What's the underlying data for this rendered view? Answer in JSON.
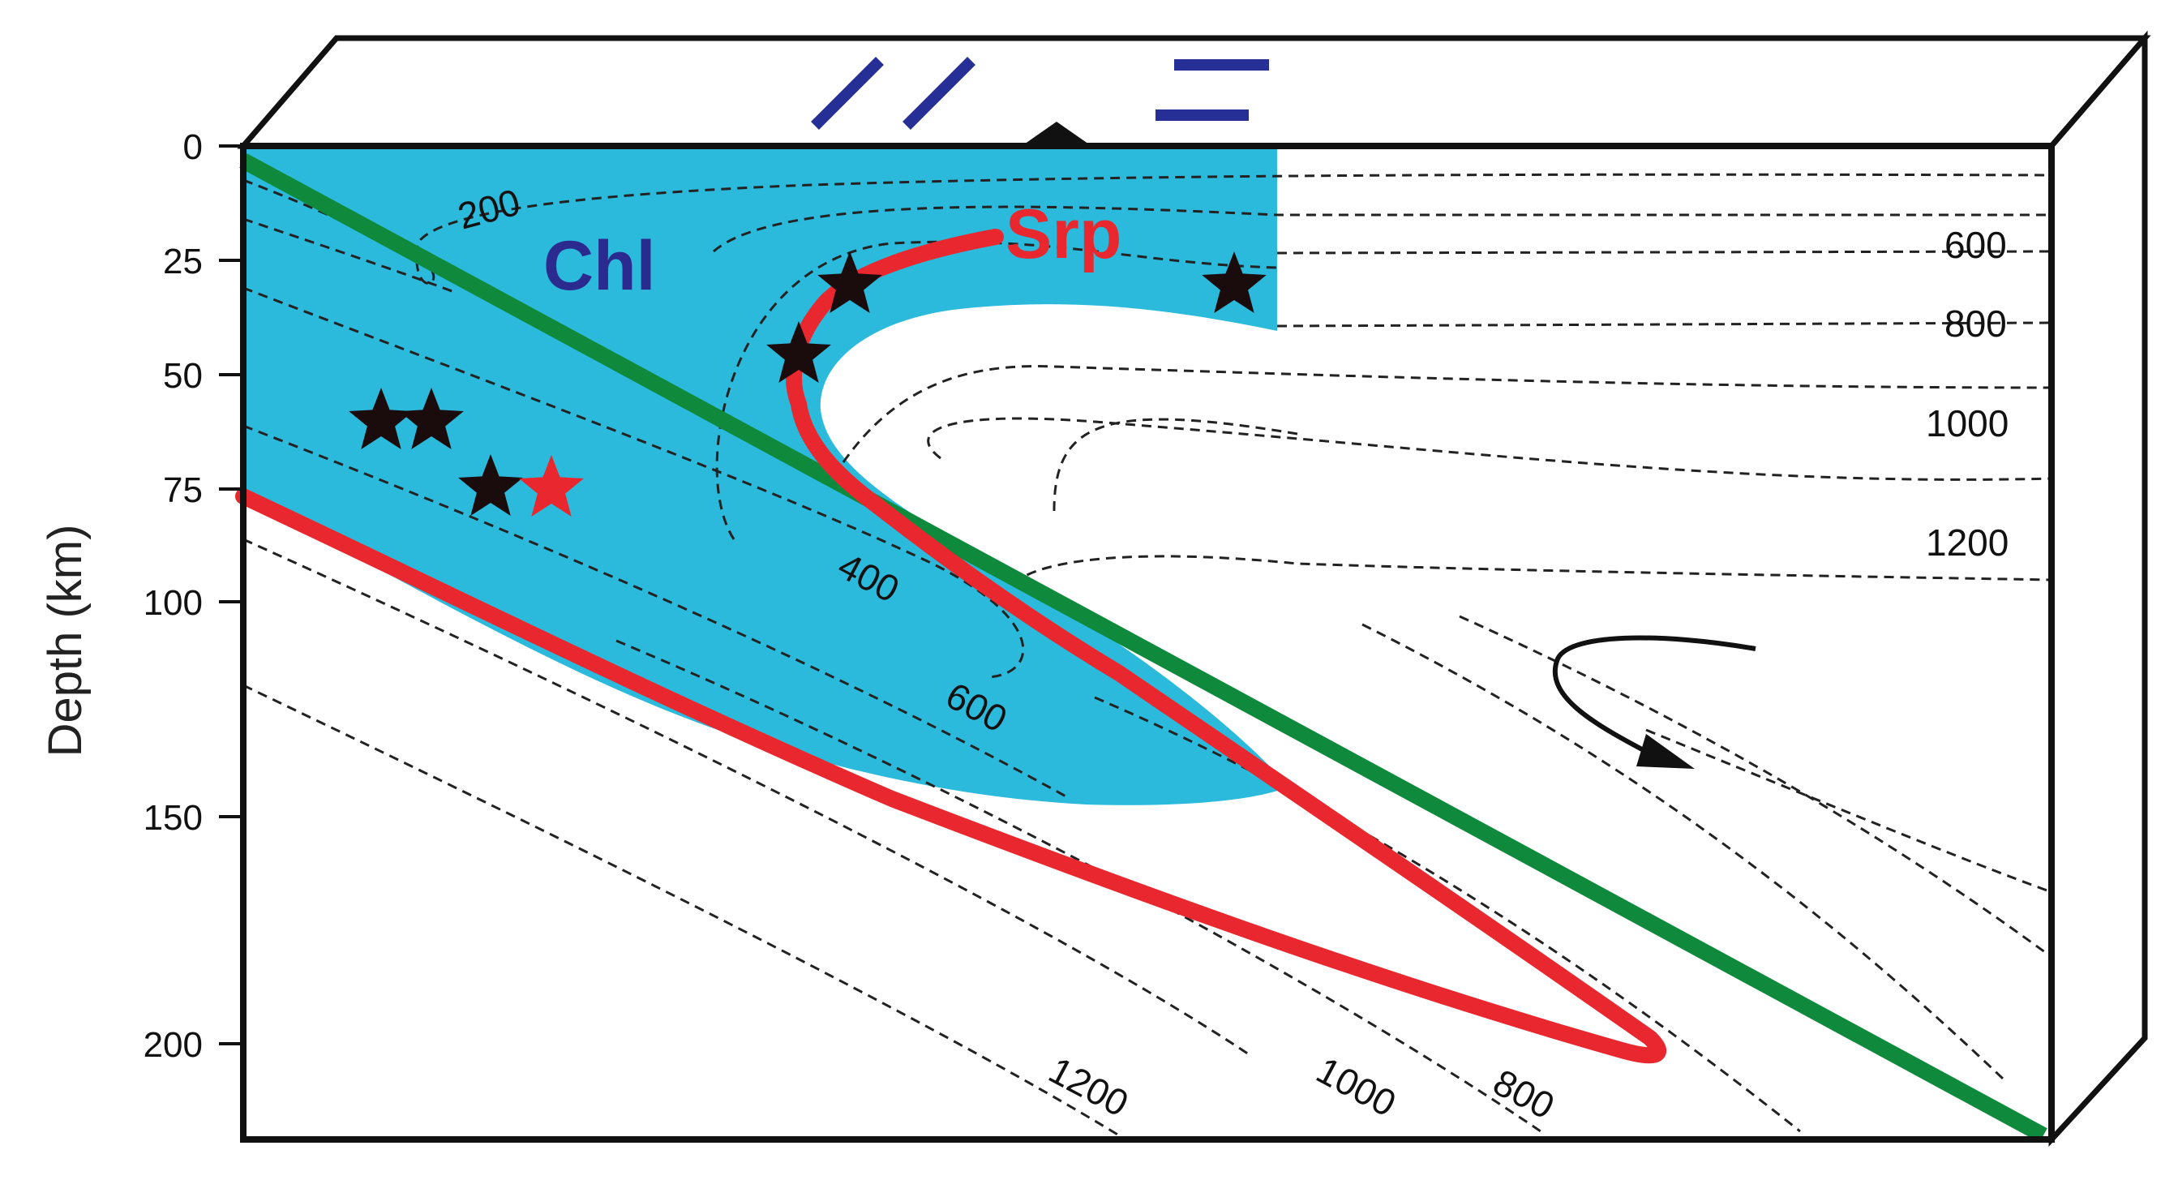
{
  "y_axis": {
    "title": "Depth (km)",
    "ticks": [
      "0",
      "25",
      "50",
      "75",
      "100",
      "150",
      "200"
    ]
  },
  "phases": {
    "chlorite": {
      "label": "Chl",
      "color": "#2b2a8f"
    },
    "serpentine": {
      "label": "Srp",
      "color": "#e8282e"
    }
  },
  "isotherm_labels": {
    "wedge_200": "200",
    "mantle_600": "600",
    "mantle_800": "800",
    "mantle_1000": "1000",
    "mantle_1200": "1200",
    "slab_400": "400",
    "slab_600": "600",
    "bottom_1200": "1200",
    "bottom_1000": "1000",
    "bottom_800": "800"
  },
  "colors": {
    "chlorite_field": "#2bbadb",
    "slab_surface": "#0f8a3c",
    "serpentine_boundary": "#e8282e",
    "earthquake_star": "#1a0c0c",
    "highlight_star": "#e8282e",
    "stress_symbol": "#262f95"
  }
}
